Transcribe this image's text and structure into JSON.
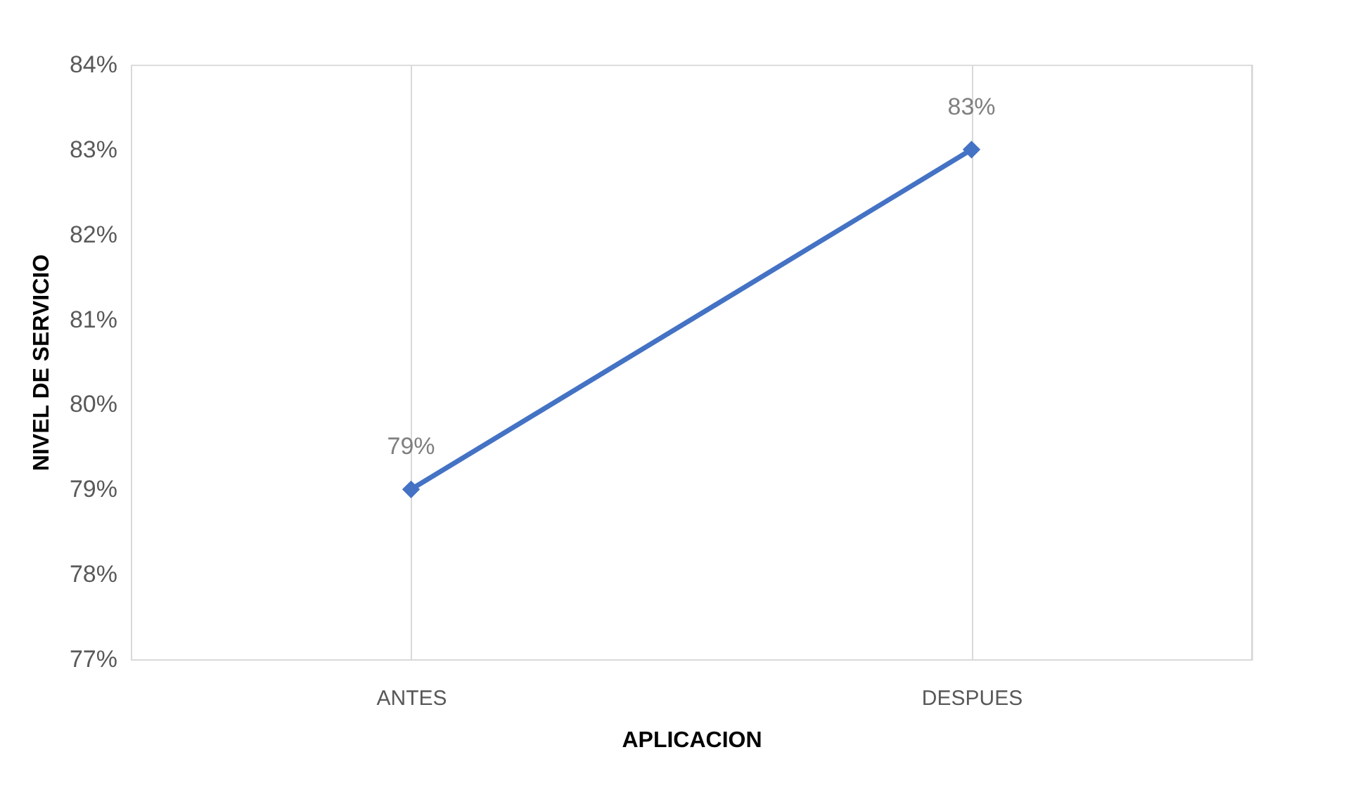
{
  "chart_data": {
    "type": "line",
    "xlabel": "APLICACION",
    "ylabel": "NIVEL DE SERVICIO",
    "categories": [
      "ANTES",
      "DESPUES"
    ],
    "series": [
      {
        "color": "#4472c4",
        "values": [
          79,
          83
        ],
        "value_labels": [
          "79%",
          "83%"
        ]
      }
    ],
    "ylim": [
      77,
      84
    ],
    "yticks": [
      {
        "value": 77,
        "label": "77%"
      },
      {
        "value": 78,
        "label": "78%"
      },
      {
        "value": 79,
        "label": "79%"
      },
      {
        "value": 80,
        "label": "80%"
      },
      {
        "value": 81,
        "label": "81%"
      },
      {
        "value": 82,
        "label": "82%"
      },
      {
        "value": 83,
        "label": "83%"
      },
      {
        "value": 84,
        "label": "84%"
      }
    ],
    "grid": "x",
    "marker": "diamond",
    "line_style": "solid",
    "legend": false
  }
}
